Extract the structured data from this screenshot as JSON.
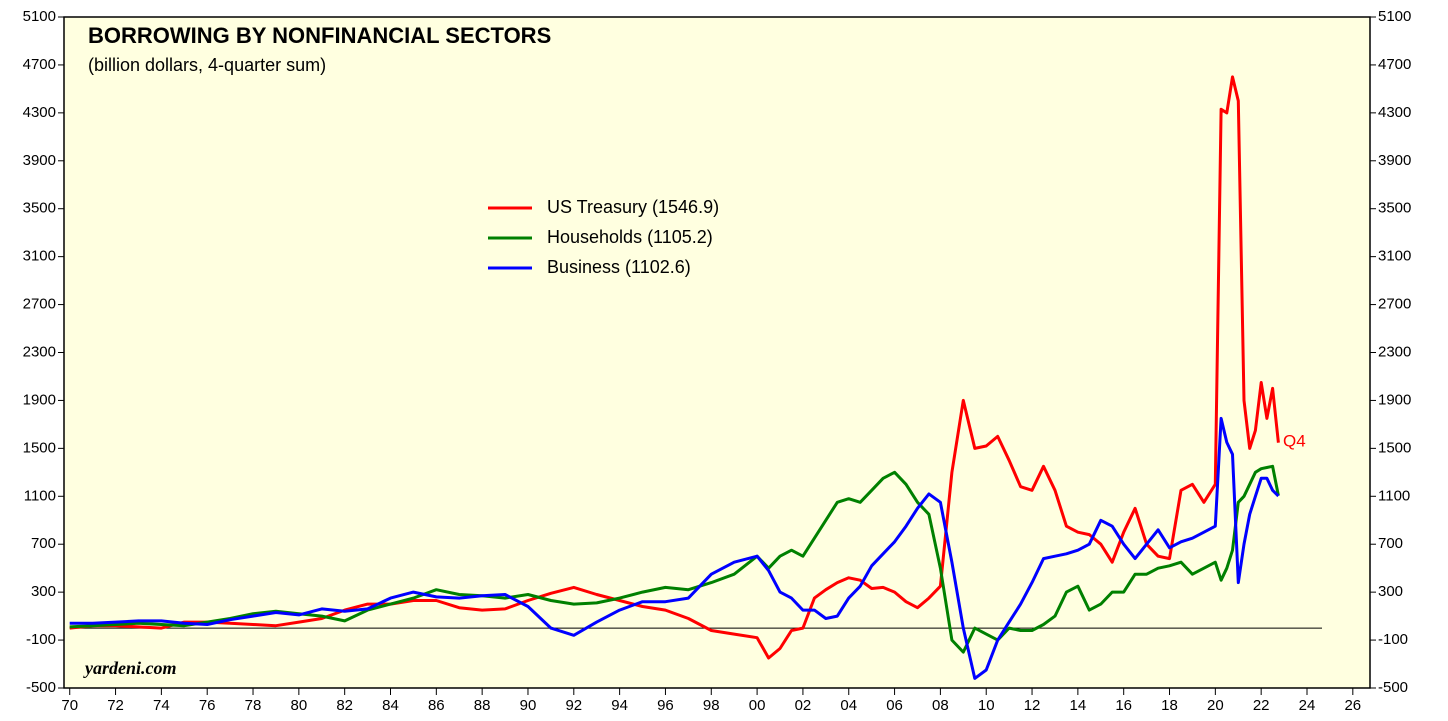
{
  "chart_data": {
    "type": "line",
    "title": "BORROWING BY NONFINANCIAL SECTORS",
    "subtitle": "(billion dollars, 4-quarter sum)",
    "annotations": {
      "last_quarter": "Q4",
      "source": "yardeni.com"
    },
    "x": [
      1970,
      1971,
      1972,
      1973,
      1974,
      1975,
      1976,
      1977,
      1978,
      1979,
      1980,
      1981,
      1982,
      1983,
      1984,
      1985,
      1986,
      1987,
      1988,
      1989,
      1990,
      1991,
      1992,
      1993,
      1994,
      1995,
      1996,
      1997,
      1998,
      1999,
      2000,
      2000.5,
      2001,
      2001.5,
      2002,
      2002.5,
      2003,
      2003.5,
      2004,
      2004.5,
      2005,
      2005.5,
      2006,
      2006.5,
      2007,
      2007.5,
      2008,
      2008.5,
      2009,
      2009.5,
      2010,
      2010.5,
      2011,
      2011.5,
      2012,
      2012.5,
      2013,
      2013.5,
      2014,
      2014.5,
      2015,
      2015.5,
      2016,
      2016.5,
      2017,
      2017.5,
      2018,
      2018.5,
      2019,
      2019.5,
      2020,
      2020.25,
      2020.5,
      2020.75,
      2021,
      2021.25,
      2021.5,
      2021.75,
      2022,
      2022.25,
      2022.5,
      2022.75
    ],
    "series": [
      {
        "name": "US Treasury (1546.9)",
        "color": "#ff0000",
        "values": [
          0,
          20,
          20,
          10,
          0,
          50,
          50,
          40,
          30,
          20,
          50,
          80,
          150,
          200,
          200,
          230,
          230,
          170,
          150,
          160,
          230,
          290,
          340,
          280,
          230,
          180,
          150,
          80,
          -20,
          -50,
          -80,
          -250,
          -170,
          -20,
          0,
          250,
          320,
          380,
          420,
          400,
          330,
          340,
          300,
          220,
          170,
          250,
          350,
          1300,
          1900,
          1500,
          1520,
          1600,
          1400,
          1180,
          1150,
          1350,
          1150,
          850,
          800,
          780,
          700,
          550,
          800,
          1000,
          700,
          600,
          580,
          1150,
          1200,
          1050,
          1200,
          4330,
          4300,
          4600,
          4400,
          1900,
          1500,
          1650,
          2050,
          1750,
          2000,
          1546.9
        ]
      },
      {
        "name": "Households (1105.2)",
        "color": "#008000",
        "values": [
          10,
          20,
          30,
          40,
          30,
          20,
          50,
          80,
          120,
          140,
          120,
          100,
          60,
          150,
          200,
          250,
          320,
          280,
          270,
          250,
          280,
          230,
          200,
          210,
          250,
          300,
          340,
          320,
          380,
          450,
          600,
          500,
          600,
          650,
          600,
          750,
          900,
          1050,
          1080,
          1050,
          1150,
          1250,
          1300,
          1200,
          1050,
          950,
          500,
          -100,
          -200,
          0,
          -50,
          -100,
          0,
          -20,
          -20,
          30,
          100,
          300,
          350,
          150,
          200,
          300,
          300,
          450,
          450,
          500,
          520,
          550,
          450,
          500,
          550,
          400,
          500,
          650,
          1050,
          1100,
          1200,
          1300,
          1330,
          1340,
          1350,
          1105.2
        ]
      },
      {
        "name": "Business (1102.6)",
        "color": "#0000ff",
        "values": [
          40,
          40,
          50,
          60,
          60,
          40,
          30,
          70,
          100,
          130,
          110,
          160,
          140,
          160,
          250,
          300,
          260,
          250,
          270,
          280,
          180,
          0,
          -60,
          50,
          150,
          220,
          220,
          250,
          450,
          550,
          600,
          480,
          300,
          250,
          150,
          150,
          80,
          100,
          250,
          350,
          520,
          620,
          720,
          850,
          1000,
          1120,
          1050,
          550,
          0,
          -420,
          -350,
          -100,
          50,
          200,
          380,
          580,
          600,
          620,
          650,
          700,
          900,
          850,
          700,
          580,
          700,
          820,
          670,
          720,
          750,
          800,
          850,
          1750,
          1550,
          1450,
          380,
          700,
          950,
          1100,
          1250,
          1250,
          1150,
          1102.6
        ]
      }
    ],
    "xlim": [
      1969.75,
      2026.75
    ],
    "xticks": [
      {
        "value": 1970,
        "label": "70"
      },
      {
        "value": 1972,
        "label": "72"
      },
      {
        "value": 1974,
        "label": "74"
      },
      {
        "value": 1976,
        "label": "76"
      },
      {
        "value": 1978,
        "label": "78"
      },
      {
        "value": 1980,
        "label": "80"
      },
      {
        "value": 1982,
        "label": "82"
      },
      {
        "value": 1984,
        "label": "84"
      },
      {
        "value": 1986,
        "label": "86"
      },
      {
        "value": 1988,
        "label": "88"
      },
      {
        "value": 1990,
        "label": "90"
      },
      {
        "value": 1992,
        "label": "92"
      },
      {
        "value": 1994,
        "label": "94"
      },
      {
        "value": 1996,
        "label": "96"
      },
      {
        "value": 1998,
        "label": "98"
      },
      {
        "value": 2000,
        "label": "00"
      },
      {
        "value": 2002,
        "label": "02"
      },
      {
        "value": 2004,
        "label": "04"
      },
      {
        "value": 2006,
        "label": "06"
      },
      {
        "value": 2008,
        "label": "08"
      },
      {
        "value": 2010,
        "label": "10"
      },
      {
        "value": 2012,
        "label": "12"
      },
      {
        "value": 2014,
        "label": "14"
      },
      {
        "value": 2016,
        "label": "16"
      },
      {
        "value": 2018,
        "label": "18"
      },
      {
        "value": 2020,
        "label": "20"
      },
      {
        "value": 2022,
        "label": "22"
      },
      {
        "value": 2024,
        "label": "24"
      },
      {
        "value": 2026,
        "label": "26"
      }
    ],
    "ylim": [
      -500,
      5100
    ],
    "yticks": [
      -500,
      -100,
      300,
      700,
      1100,
      1500,
      1900,
      2300,
      2700,
      3100,
      3500,
      3900,
      4300,
      4700,
      5100
    ],
    "zero_line": true,
    "background": "#ffffe0"
  }
}
